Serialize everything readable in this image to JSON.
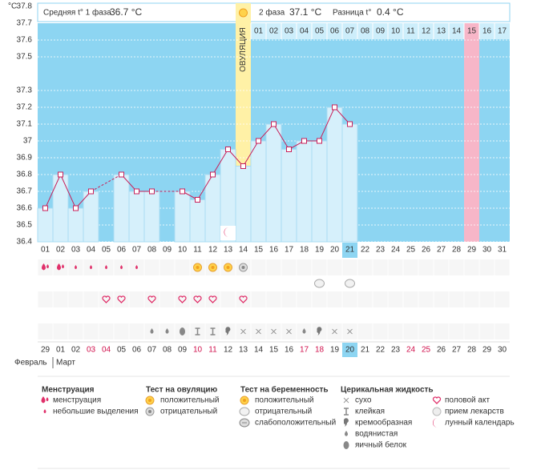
{
  "header": {
    "phase1_label": "Средняя t° 1 фаза",
    "phase1_value": "36.7 °C",
    "phase2_label": "2 фаза",
    "phase2_value": "37.1 °C",
    "diff_label": "Разница t°",
    "diff_value": "0.4 °C"
  },
  "ovulation_label": "ОВУЛЯЦИЯ",
  "chart_data": {
    "type": "line",
    "y_unit": "°C",
    "color": "#c8205a",
    "categories": [
      "01",
      "02",
      "03",
      "04",
      "05",
      "06",
      "07",
      "08",
      "09",
      "10",
      "11",
      "12",
      "13",
      "14",
      "15",
      "16",
      "17",
      "18",
      "19",
      "20",
      "21",
      "22",
      "23",
      "24",
      "25",
      "26",
      "27",
      "28",
      "29",
      "30",
      "31"
    ],
    "values": [
      36.6,
      36.8,
      36.6,
      36.7,
      null,
      36.8,
      36.7,
      36.7,
      null,
      36.7,
      36.65,
      36.8,
      36.95,
      36.85,
      37.0,
      37.1,
      36.95,
      37.0,
      37.0,
      37.2,
      37.1,
      null,
      null,
      null,
      null,
      null,
      null,
      null,
      null,
      null,
      null
    ],
    "ylim": [
      36.4,
      37.8
    ],
    "yticks": [
      36.4,
      36.5,
      36.6,
      36.7,
      36.8,
      36.9,
      37,
      37.1,
      37.2,
      37.3,
      37.5,
      37.6,
      37.7,
      37.8
    ],
    "grid": true,
    "phase2_days": [
      "01",
      "02",
      "03",
      "04",
      "05",
      "06",
      "07",
      "08",
      "09",
      "10",
      "11",
      "12",
      "13",
      "14",
      "15",
      "16",
      "17"
    ]
  },
  "dates": [
    "29",
    "01",
    "02",
    "03",
    "04",
    "05",
    "06",
    "07",
    "08",
    "09",
    "10",
    "11",
    "12",
    "13",
    "14",
    "15",
    "16",
    "17",
    "18",
    "19",
    "20",
    "21",
    "22",
    "23",
    "24",
    "25",
    "26",
    "27",
    "28",
    "29",
    "30"
  ],
  "date_colors": [
    "#333",
    "#333",
    "#333",
    "#d0104c",
    "#d0104c",
    "#333",
    "#333",
    "#333",
    "#333",
    "#333",
    "#d0104c",
    "#d0104c",
    "#333",
    "#333",
    "#333",
    "#333",
    "#333",
    "#d0104c",
    "#d0104c",
    "#333",
    "#333",
    "#333",
    "#333",
    "#333",
    "#d0104c",
    "#d0104c",
    "#333",
    "#333",
    "#333",
    "#333",
    "#333"
  ],
  "months": [
    "Февраль",
    "Март"
  ],
  "legend": [
    {
      "title": "Менструация",
      "items": [
        "менструация",
        "небольшие выделения"
      ]
    },
    {
      "title": "Тест на овуляцию",
      "items": [
        "положительный",
        "отрицательный"
      ]
    },
    {
      "title": "Тест на беременность",
      "items": [
        "положительный",
        "отрицательный",
        "слабоположительный"
      ]
    },
    {
      "title": "Церикальная жидкость",
      "items": [
        "сухо",
        "клейкая",
        "кремообразная",
        "водянистая",
        "яичный белок"
      ]
    },
    {
      "items": [
        "половой акт",
        "прием лекарств",
        "лунный календарь"
      ]
    }
  ]
}
